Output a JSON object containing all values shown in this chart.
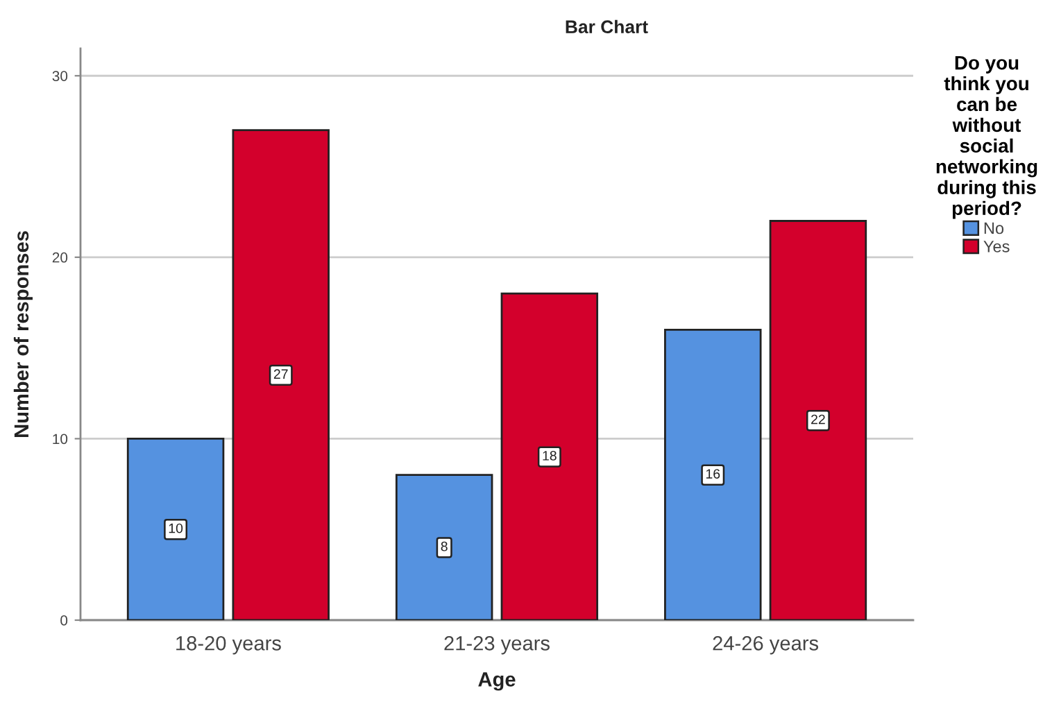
{
  "chart_data": {
    "type": "bar",
    "title": "Bar Chart",
    "xlabel": "Age",
    "ylabel": "Number of responses",
    "legend_title": "Do you\nthink you\ncan be\nwithout\nsocial\nnetworking\nduring this\nperiod?",
    "categories": [
      "18-20 years",
      "21-23 years",
      "24-26 years"
    ],
    "series": [
      {
        "name": "No",
        "color": "#5592e0",
        "values": [
          10,
          8,
          16
        ]
      },
      {
        "name": "Yes",
        "color": "#d3002c",
        "values": [
          27,
          18,
          22
        ]
      }
    ],
    "ylim": [
      0,
      31.5
    ],
    "yticks": [
      0,
      10,
      20,
      30
    ],
    "grid": "y",
    "legend": "right",
    "data_labels": true
  }
}
